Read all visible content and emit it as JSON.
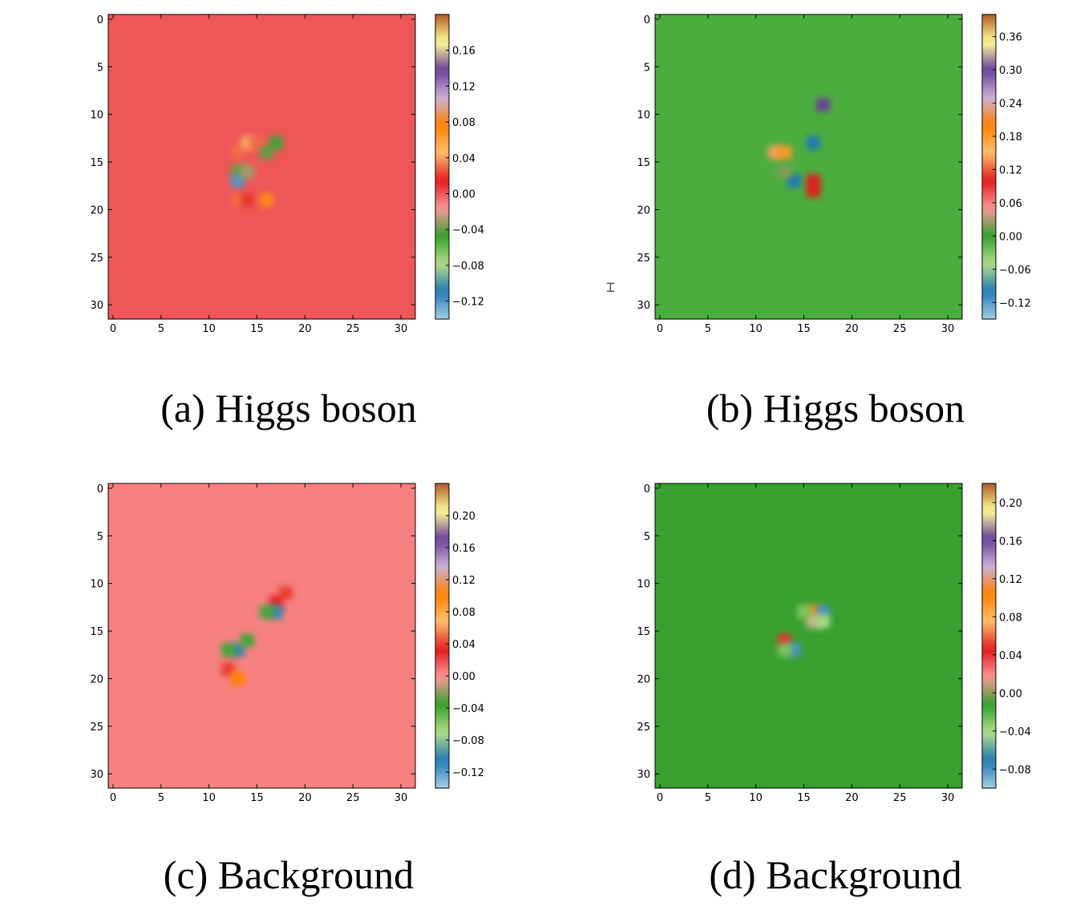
{
  "chart_data": [
    {
      "type": "heatmap",
      "caption": "(a) Higgs boson",
      "grid_size": 32,
      "xticks": [
        0,
        5,
        10,
        15,
        20,
        25,
        30
      ],
      "yticks": [
        0,
        5,
        10,
        15,
        20,
        25,
        30
      ],
      "colorbar": {
        "range": [
          -0.14,
          0.2
        ],
        "ticks": [
          "0.16",
          "0.12",
          "0.08",
          "0.04",
          "0.00",
          "−0.04",
          "−0.08",
          "−0.12"
        ],
        "tick_values": [
          0.16,
          0.12,
          0.08,
          0.04,
          0.0,
          -0.04,
          -0.08,
          -0.12
        ]
      },
      "background_value": 0.0,
      "hotspots": [
        {
          "x": 13,
          "y": 14,
          "value": 0.03
        },
        {
          "x": 14,
          "y": 13,
          "value": 0.04
        },
        {
          "x": 15,
          "y": 13,
          "value": 0.03
        },
        {
          "x": 16,
          "y": 14,
          "value": -0.04
        },
        {
          "x": 17,
          "y": 13,
          "value": -0.05
        },
        {
          "x": 13,
          "y": 16,
          "value": -0.04
        },
        {
          "x": 13,
          "y": 17,
          "value": -0.12
        },
        {
          "x": 14,
          "y": 16,
          "value": -0.03
        },
        {
          "x": 13,
          "y": 19,
          "value": 0.03
        },
        {
          "x": 14,
          "y": 19,
          "value": 0.02
        },
        {
          "x": 16,
          "y": 19,
          "value": 0.07
        }
      ]
    },
    {
      "type": "heatmap",
      "caption": "(b) Higgs boson",
      "grid_size": 32,
      "xticks": [
        0,
        5,
        10,
        15,
        20,
        25,
        30
      ],
      "yticks": [
        0,
        5,
        10,
        15,
        20,
        25,
        30
      ],
      "colorbar": {
        "range": [
          -0.15,
          0.4
        ],
        "ticks": [
          "0.36",
          "0.30",
          "0.24",
          "0.18",
          "0.12",
          "0.06",
          "0.00",
          "−0.06",
          "−0.12"
        ],
        "tick_values": [
          0.36,
          0.3,
          0.24,
          0.18,
          0.12,
          0.06,
          0.0,
          -0.06,
          -0.12
        ]
      },
      "background_value": -0.01,
      "hotspots": [
        {
          "x": 12,
          "y": 14,
          "value": 0.14
        },
        {
          "x": 13,
          "y": 14,
          "value": 0.18
        },
        {
          "x": 16,
          "y": 13,
          "value": -0.1
        },
        {
          "x": 14,
          "y": 17,
          "value": -0.1
        },
        {
          "x": 16,
          "y": 17,
          "value": 0.1
        },
        {
          "x": 16,
          "y": 18,
          "value": 0.1
        },
        {
          "x": 17,
          "y": 9,
          "value": 0.3
        },
        {
          "x": 13,
          "y": 16,
          "value": 0.02
        }
      ]
    },
    {
      "type": "heatmap",
      "caption": "(c) Background",
      "grid_size": 32,
      "xticks": [
        0,
        5,
        10,
        15,
        20,
        25,
        30
      ],
      "yticks": [
        0,
        5,
        10,
        15,
        20,
        25,
        30
      ],
      "colorbar": {
        "range": [
          -0.14,
          0.24
        ],
        "ticks": [
          "0.20",
          "0.16",
          "0.12",
          "0.08",
          "0.04",
          "0.00",
          "−0.04",
          "−0.08",
          "−0.12"
        ],
        "tick_values": [
          0.2,
          0.16,
          0.12,
          0.08,
          0.04,
          0.0,
          -0.04,
          -0.08,
          -0.12
        ]
      },
      "background_value": 0.005,
      "hotspots": [
        {
          "x": 18,
          "y": 11,
          "value": 0.04
        },
        {
          "x": 17,
          "y": 12,
          "value": 0.03
        },
        {
          "x": 17,
          "y": 13,
          "value": -0.1
        },
        {
          "x": 16,
          "y": 13,
          "value": -0.04
        },
        {
          "x": 13,
          "y": 17,
          "value": -0.1
        },
        {
          "x": 12,
          "y": 17,
          "value": -0.04
        },
        {
          "x": 12,
          "y": 19,
          "value": 0.04
        },
        {
          "x": 13,
          "y": 20,
          "value": 0.1
        },
        {
          "x": 14,
          "y": 16,
          "value": -0.04
        }
      ]
    },
    {
      "type": "heatmap",
      "caption": "(d) Background",
      "grid_size": 32,
      "xticks": [
        0,
        5,
        10,
        15,
        20,
        25,
        30
      ],
      "yticks": [
        0,
        5,
        10,
        15,
        20,
        25,
        30
      ],
      "colorbar": {
        "range": [
          -0.1,
          0.22
        ],
        "ticks": [
          "0.20",
          "0.16",
          "0.12",
          "0.08",
          "0.04",
          "0.00",
          "−0.04",
          "−0.08"
        ],
        "tick_values": [
          0.2,
          0.16,
          0.12,
          0.08,
          0.04,
          0.0,
          -0.04,
          -0.08
        ]
      },
      "background_value": -0.012,
      "hotspots": [
        {
          "x": 16,
          "y": 13,
          "value": 0.1
        },
        {
          "x": 17,
          "y": 13,
          "value": -0.08
        },
        {
          "x": 16,
          "y": 14,
          "value": 0.18
        },
        {
          "x": 17,
          "y": 14,
          "value": -0.04
        },
        {
          "x": 13,
          "y": 16,
          "value": 0.04
        },
        {
          "x": 14,
          "y": 17,
          "value": -0.08
        },
        {
          "x": 13,
          "y": 17,
          "value": -0.03
        },
        {
          "x": 15,
          "y": 13,
          "value": -0.03
        }
      ]
    }
  ]
}
